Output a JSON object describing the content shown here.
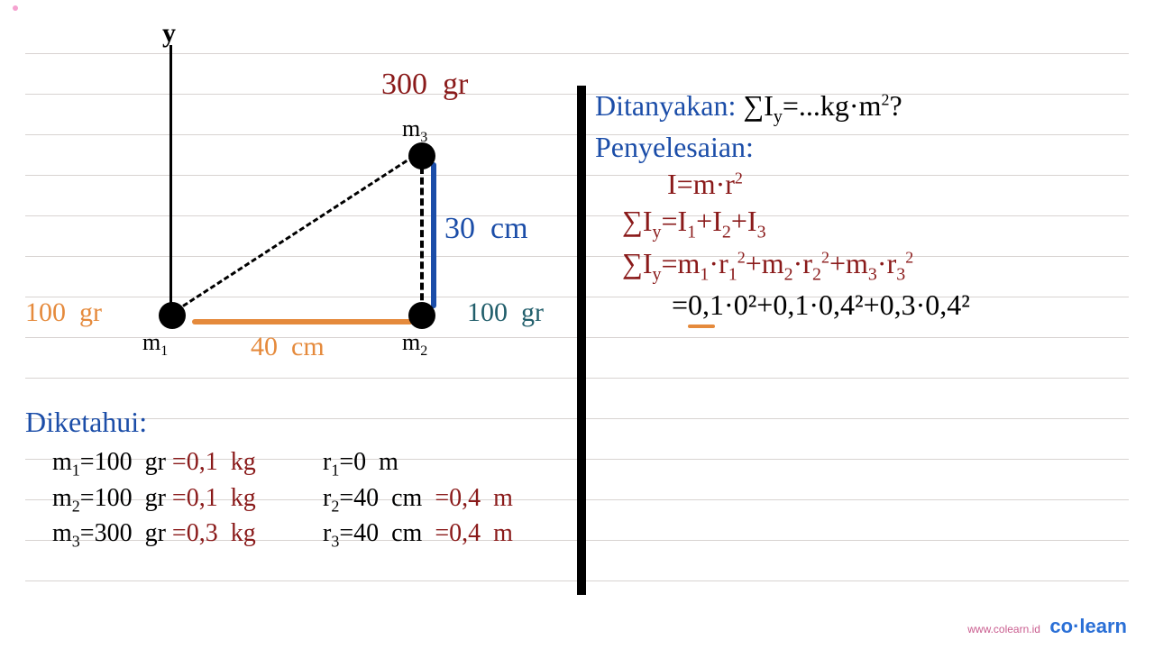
{
  "colors": {
    "orange": "#e58a3c",
    "darkred": "#8a1a1a",
    "blue": "#1b4da8",
    "teal": "#215e6b",
    "black": "#000000",
    "brand": "#2a6fd6",
    "pink": "#c95c8e"
  },
  "diagram": {
    "y_label": "y",
    "m1": {
      "label": "m",
      "sub": "1",
      "mass_text": "100  gr"
    },
    "m2": {
      "label": "m",
      "sub": "2",
      "mass_text": "100  gr"
    },
    "m3": {
      "label": "m",
      "sub": "3",
      "mass_text": "300  gr"
    },
    "base_len": "40  cm",
    "side_len": "30  cm"
  },
  "known": {
    "title": "Diketahui:",
    "rows": [
      {
        "m": "m",
        "msub": "1",
        "mval": "=100  gr",
        "mconv": "=0,1  kg",
        "r": "r",
        "rsub": "1",
        "rval": "=0  m",
        "rconv": ""
      },
      {
        "m": "m",
        "msub": "2",
        "mval": "=100  gr",
        "mconv": "=0,1  kg",
        "r": "r",
        "rsub": "2",
        "rval": "=40  cm ",
        "rconv": "=0,4  m"
      },
      {
        "m": "m",
        "msub": "3",
        "mval": "=300  gr",
        "mconv": "=0,3  kg",
        "r": "r",
        "rsub": "3",
        "rval": "=40  cm ",
        "rconv": "=0,4  m"
      }
    ]
  },
  "asked": {
    "label": "Ditanyakan:",
    "expr_pre": "∑I",
    "expr_sub": "y",
    "expr_post": "=...kg·m",
    "expr_sup": "2",
    "expr_q": "?"
  },
  "solve": {
    "label": "Penyelesaian:",
    "formula": "I=m·r",
    "line2_pre": "∑I",
    "line2_sub": "y",
    "line2_eq": "=I",
    "line3_pre": "∑I",
    "line3_sub": "y",
    "line3_eq": "=m",
    "line4": "=0,1·0²+0,1·0,4²+0,3·0,4²"
  },
  "footer": {
    "url": "www.colearn.id",
    "brand_a": "co",
    "brand_dot": "·",
    "brand_b": "learn"
  }
}
